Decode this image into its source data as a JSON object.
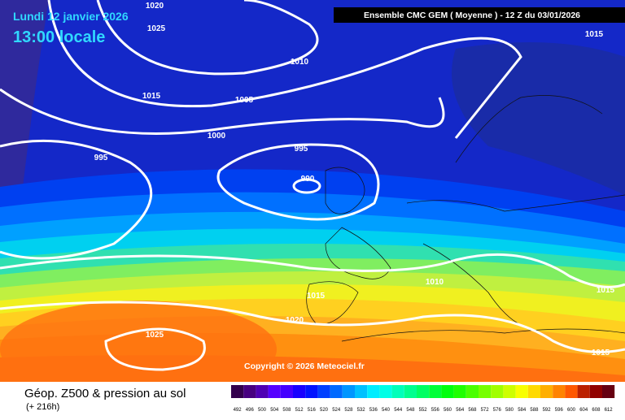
{
  "header": {
    "date": "Lundi 12 janvier 2026",
    "time": "13:00 locale",
    "run": "Ensemble CMC GEM  ( Moyenne )  -  12 Z du 03/01/2026"
  },
  "isobar_labels": [
    "1020",
    "1025",
    "1010",
    "1015",
    "1005",
    "1000",
    "995",
    "995",
    "990",
    "1015",
    "1010",
    "1015",
    "1020",
    "1015",
    "1015",
    "1025"
  ],
  "copyright": "Copyright © 2026 Meteociel.fr",
  "footer": {
    "title": "Géop. Z500 & pression au sol",
    "lead": "(+ 216h)"
  },
  "legend": {
    "labels": [
      "492",
      "496",
      "500",
      "504",
      "508",
      "512",
      "516",
      "520",
      "524",
      "528",
      "532",
      "536",
      "540",
      "544",
      "548",
      "552",
      "556",
      "560",
      "564",
      "568",
      "572",
      "576",
      "580",
      "584",
      "588",
      "592",
      "596",
      "600",
      "604",
      "608",
      "612"
    ]
  }
}
